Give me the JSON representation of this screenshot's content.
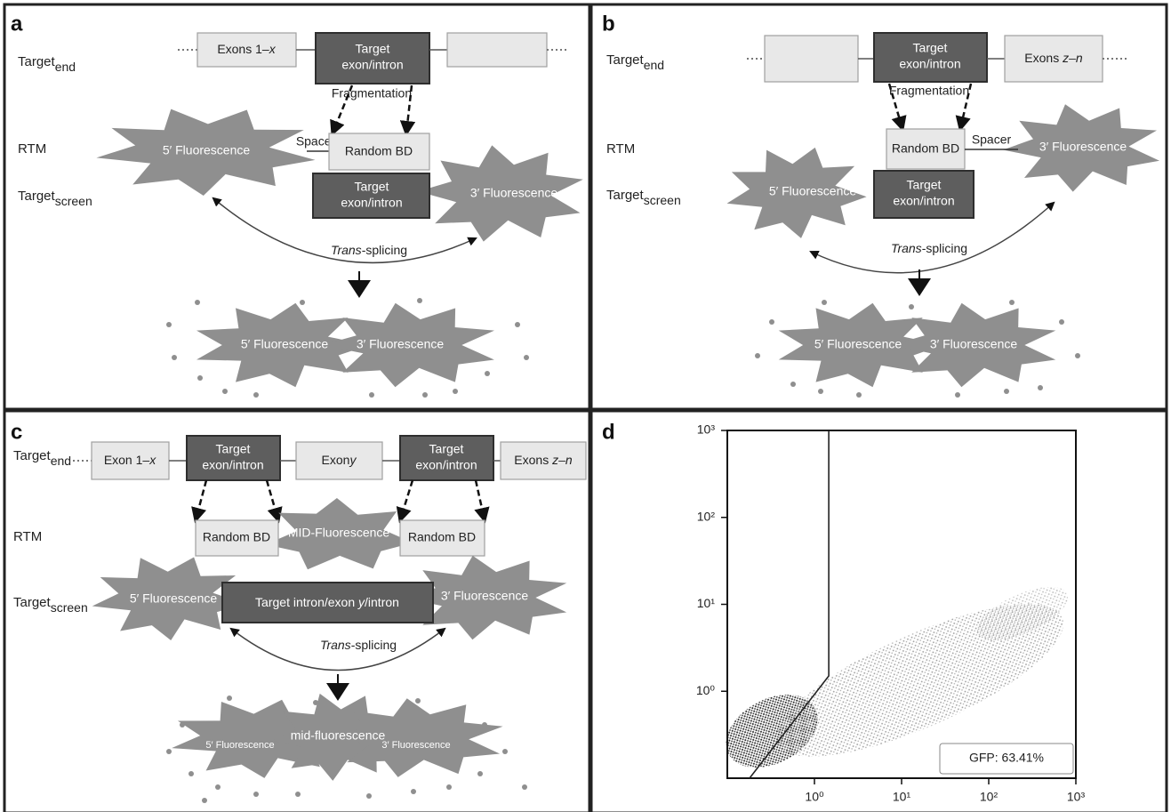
{
  "panels": {
    "a": {
      "letter": "a",
      "target_end": {
        "text": "Target",
        "sub": "end"
      },
      "rtm": "RTM",
      "target_screen": {
        "text": "Target",
        "sub": "screen"
      },
      "exons_box": [
        "Exons 1–",
        "x"
      ],
      "target_box": [
        "Target",
        "exon/intron"
      ],
      "fragmentation": "Fragmentation",
      "spacer": "Spacer",
      "random_bd": "Random BD",
      "screen_box": [
        "Target",
        "exon/intron"
      ],
      "five_prime": "5′ Fluorescence",
      "three_prime": "3′ Fluorescence",
      "trans_splicing": [
        "Trans",
        "-splicing"
      ],
      "product_five": "5′ Fluorescence",
      "product_three": "3′ Fluorescence"
    },
    "b": {
      "letter": "b",
      "target_end": {
        "text": "Target",
        "sub": "end"
      },
      "rtm": "RTM",
      "target_screen": {
        "text": "Target",
        "sub": "screen"
      },
      "target_box": [
        "Target",
        "exon/intron"
      ],
      "exons_box": [
        "Exons ",
        "z–n"
      ],
      "fragmentation": "Fragmentation",
      "random_bd": "Random BD",
      "spacer": "Spacer",
      "three_prime": "3′ Fluorescence",
      "five_prime": "5′ Fluorescence",
      "screen_box": [
        "Target",
        "exon/intron"
      ],
      "trans_splicing": [
        "Trans",
        "-splicing"
      ],
      "product_five": "5′ Fluorescence",
      "product_three": "3′ Fluorescence"
    },
    "c": {
      "letter": "c",
      "target_end": {
        "text": "Target",
        "sub": "end"
      },
      "rtm": "RTM",
      "target_screen": {
        "text": "Target",
        "sub": "screen"
      },
      "exon_first": [
        "Exon 1–",
        "x"
      ],
      "target_box_1": [
        "Target",
        "exon/intron"
      ],
      "exon_mid": [
        "Exon",
        "y"
      ],
      "target_box_2": [
        "Target",
        "exon/intron"
      ],
      "exon_last": [
        "Exons ",
        "z–n"
      ],
      "random_bd_1": "Random BD",
      "mid_fluorescence": "MID-Fluorescence",
      "random_bd_2": "Random BD",
      "screen_box": [
        "Target intron/exon ",
        "y",
        "/intron"
      ],
      "five_prime": "5′ Fluorescence",
      "three_prime": "3′ Fluorescence",
      "trans_splicing": [
        "Trans",
        "-splicing"
      ],
      "product_five": "5′ Fluorescence",
      "product_mid": "mid-fluorescence",
      "product_three": "3′ Fluorescence"
    },
    "d": {
      "letter": "d",
      "chart": {
        "type": "scatter",
        "log_scale": true,
        "xlim": [
          0.1,
          1000
        ],
        "ylim": [
          0.1,
          1000
        ],
        "xticks": [
          {
            "value": 1,
            "label": "10⁰"
          },
          {
            "value": 10,
            "label": "10¹"
          },
          {
            "value": 100,
            "label": "10²"
          },
          {
            "value": 1000,
            "label": "10³"
          }
        ],
        "yticks": [
          {
            "value": 1,
            "label": "10⁰"
          },
          {
            "value": 10,
            "label": "10¹"
          },
          {
            "value": 100,
            "label": "10²"
          },
          {
            "value": 1000,
            "label": "10³"
          }
        ],
        "gate_x": [
          0.18,
          1.46,
          1.46
        ],
        "gate_y": [
          0.1,
          1.5,
          1000
        ],
        "annotation": "GFP: 63.41%"
      }
    }
  }
}
